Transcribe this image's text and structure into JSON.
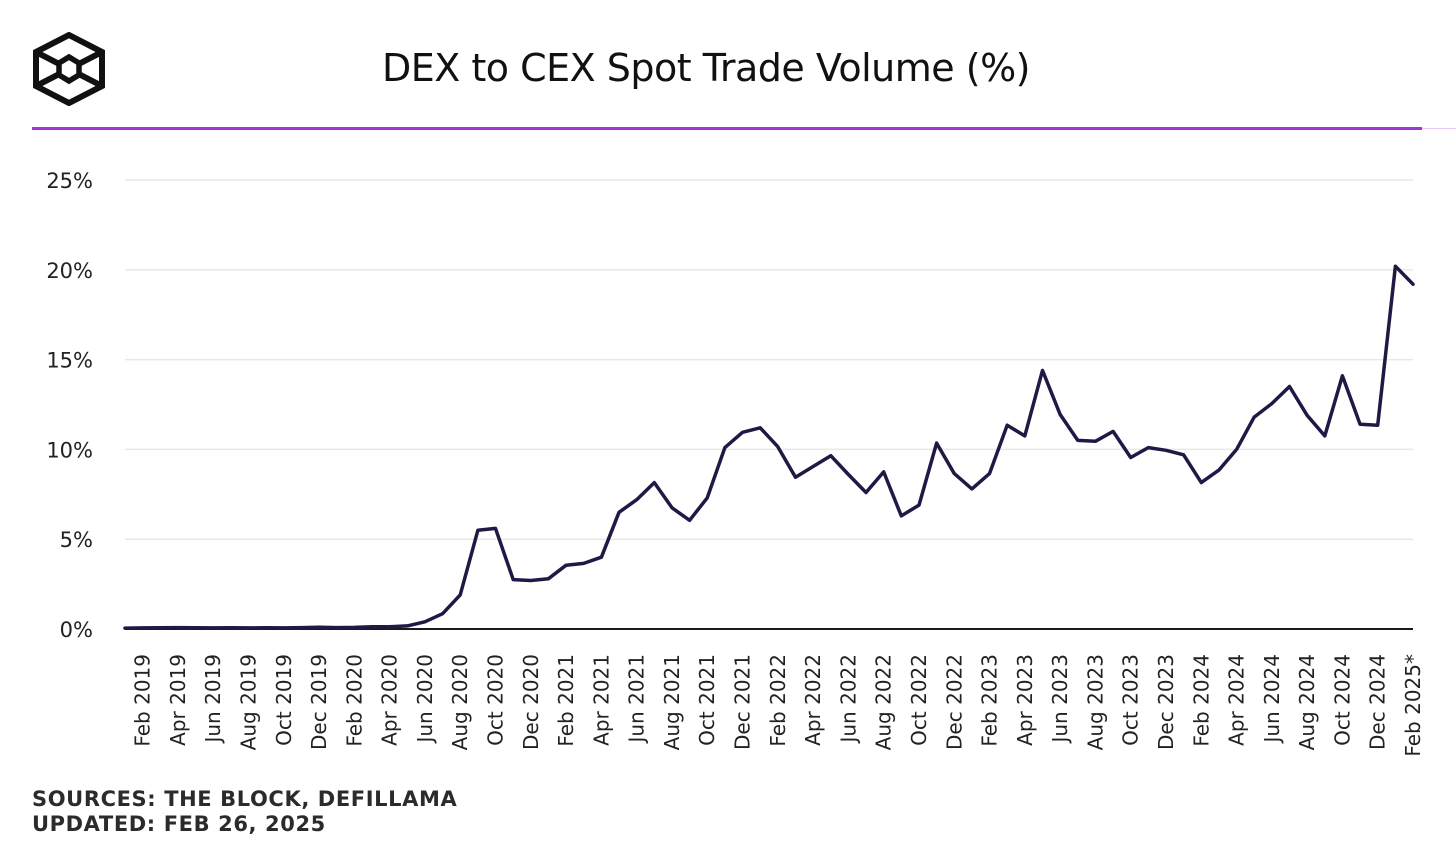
{
  "header": {
    "title": "DEX to CEX Spot Trade Volume (%)"
  },
  "footer": {
    "sources": "SOURCES: THE BLOCK, DEFILLAMA",
    "updated": "UPDATED: FEB 26, 2025"
  },
  "colors": {
    "accent_rule": "#a237d6",
    "line": "#1e1a45",
    "grid": "#e8e8e8",
    "axis": "#1a1a1a"
  },
  "icons": {
    "logo": "the-block-cube-logo"
  },
  "chart_data": {
    "type": "line",
    "title": "DEX to CEX Spot Trade Volume (%)",
    "xlabel": "",
    "ylabel": "",
    "ylim": [
      0,
      25
    ],
    "yticks": [
      0,
      5,
      10,
      15,
      20,
      25
    ],
    "ytick_labels": [
      "0%",
      "5%",
      "10%",
      "15%",
      "20%",
      "25%"
    ],
    "grid": true,
    "legend": "none",
    "x_tick_labels": [
      "Feb 2019",
      "Apr 2019",
      "Jun 2019",
      "Aug 2019",
      "Oct 2019",
      "Dec 2019",
      "Feb 2020",
      "Apr 2020",
      "Jun 2020",
      "Aug 2020",
      "Oct 2020",
      "Dec 2020",
      "Feb 2021",
      "Apr 2021",
      "Jun 2021",
      "Aug 2021",
      "Oct 2021",
      "Dec 2021",
      "Feb 2022",
      "Apr 2022",
      "Jun 2022",
      "Aug 2022",
      "Oct 2022",
      "Dec 2022",
      "Feb 2023",
      "Apr 2023",
      "Jun 2023",
      "Aug 2023",
      "Oct 2023",
      "Dec 2023",
      "Feb 2024",
      "Apr 2024",
      "Jun 2024",
      "Aug 2024",
      "Oct 2024",
      "Dec 2024",
      "Feb 2025*"
    ],
    "x": [
      "Jan 2019",
      "Feb 2019",
      "Mar 2019",
      "Apr 2019",
      "May 2019",
      "Jun 2019",
      "Jul 2019",
      "Aug 2019",
      "Sep 2019",
      "Oct 2019",
      "Nov 2019",
      "Dec 2019",
      "Jan 2020",
      "Feb 2020",
      "Mar 2020",
      "Apr 2020",
      "May 2020",
      "Jun 2020",
      "Jul 2020",
      "Aug 2020",
      "Sep 2020",
      "Oct 2020",
      "Nov 2020",
      "Dec 2020",
      "Jan 2021",
      "Feb 2021",
      "Mar 2021",
      "Apr 2021",
      "May 2021",
      "Jun 2021",
      "Jul 2021",
      "Aug 2021",
      "Sep 2021",
      "Oct 2021",
      "Nov 2021",
      "Dec 2021",
      "Jan 2022",
      "Feb 2022",
      "Mar 2022",
      "Apr 2022",
      "May 2022",
      "Jun 2022",
      "Jul 2022",
      "Aug 2022",
      "Sep 2022",
      "Oct 2022",
      "Nov 2022",
      "Dec 2022",
      "Jan 2023",
      "Feb 2023",
      "Mar 2023",
      "Apr 2023",
      "May 2023",
      "Jun 2023",
      "Jul 2023",
      "Aug 2023",
      "Sep 2023",
      "Oct 2023",
      "Nov 2023",
      "Dec 2023",
      "Jan 2024",
      "Feb 2024",
      "Mar 2024",
      "Apr 2024",
      "May 2024",
      "Jun 2024",
      "Jul 2024",
      "Aug 2024",
      "Sep 2024",
      "Oct 2024",
      "Nov 2024",
      "Dec 2024",
      "Jan 2025",
      "Feb 2025*"
    ],
    "series": [
      {
        "values": [
          0.05,
          0.06,
          0.07,
          0.08,
          0.07,
          0.06,
          0.07,
          0.06,
          0.07,
          0.06,
          0.08,
          0.1,
          0.08,
          0.09,
          0.12,
          0.13,
          0.17,
          0.4,
          0.85,
          1.9,
          5.5,
          5.6,
          2.75,
          2.7,
          2.8,
          3.55,
          3.65,
          4.0,
          6.5,
          7.2,
          8.15,
          6.75,
          6.05,
          7.3,
          10.1,
          10.95,
          11.2,
          10.15,
          8.45,
          9.05,
          9.65,
          8.6,
          7.6,
          8.75,
          6.3,
          6.9,
          10.35,
          8.65,
          7.8,
          8.65,
          11.35,
          10.75,
          14.4,
          11.95,
          10.5,
          10.45,
          11.0,
          9.55,
          10.1,
          9.95,
          9.7,
          8.15,
          8.85,
          10.0,
          11.8,
          12.55,
          13.5,
          11.9,
          10.75,
          14.1,
          11.4,
          11.35,
          20.2,
          19.2
        ]
      }
    ]
  }
}
